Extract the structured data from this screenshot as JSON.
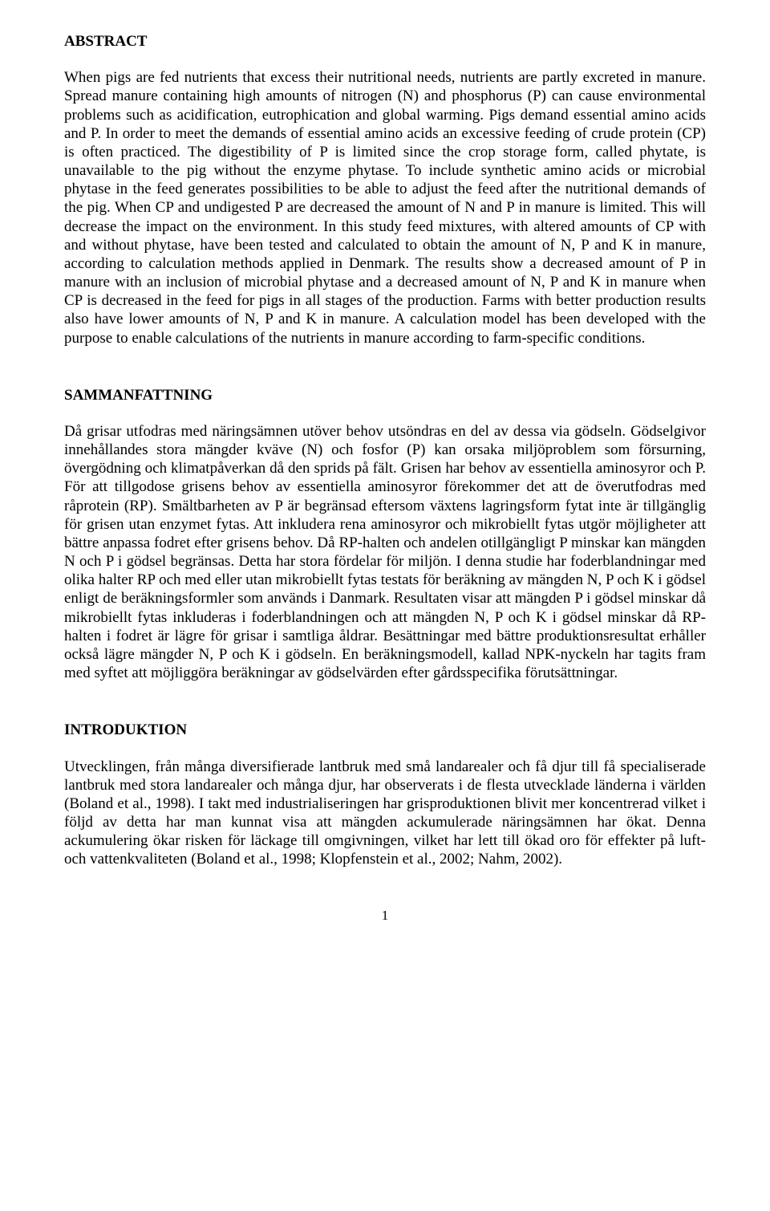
{
  "sections": {
    "abstract": {
      "heading": "ABSTRACT",
      "body": "When pigs are fed nutrients that excess their nutritional needs, nutrients are partly excreted in manure. Spread manure containing high amounts of nitrogen (N) and phosphorus (P) can cause environmental problems such as acidification, eutrophication and global warming. Pigs demand essential amino acids and P. In order to meet the demands of essential amino acids an excessive feeding of crude protein (CP) is often practiced. The digestibility of P is limited since the crop storage form, called phytate, is unavailable to the pig without the enzyme phytase. To include synthetic amino acids or microbial phytase in the feed generates possibilities to be able to adjust the feed after the nutritional demands of the pig. When CP and undigested P are decreased the amount of N and P in manure is limited. This will decrease the impact on the environment. In this study feed mixtures, with altered amounts of CP with and without phytase, have been tested and calculated to obtain the amount of N, P and K in manure, according to calculation methods applied in Denmark. The results show a decreased amount of P in manure with an inclusion of microbial phytase and a decreased amount of N, P and K in manure when CP is decreased in the feed for pigs in all stages of the production. Farms with better production results also have lower amounts of N, P and K in manure. A calculation model has been developed with the purpose to enable calculations of the nutrients in manure according to farm-specific conditions."
    },
    "sammanfattning": {
      "heading": "SAMMANFATTNING",
      "body": "Då grisar utfodras med näringsämnen utöver behov utsöndras en del av dessa via gödseln. Gödselgivor innehållandes stora mängder kväve (N) och fosfor (P) kan orsaka miljöproblem som försurning, övergödning och klimatpåverkan då den sprids på fält. Grisen har behov av essentiella aminosyror och P. För att tillgodose grisens behov av essentiella aminosyror förekommer det att de överutfodras med råprotein (RP). Smältbarheten av P är begränsad eftersom växtens lagringsform fytat inte är tillgänglig för grisen utan enzymet fytas. Att inkludera rena aminosyror och mikrobiellt fytas utgör möjligheter att bättre anpassa fodret efter grisens behov. Då RP-halten och andelen otillgängligt P minskar kan mängden N och P i gödsel begränsas. Detta har stora fördelar för miljön. I denna studie har foderblandningar med olika halter RP och med eller utan mikrobiellt fytas testats för beräkning av mängden N, P och K i gödsel enligt de beräkningsformler som används i Danmark. Resultaten visar att mängden P i gödsel minskar då mikrobiellt fytas inkluderas i foderblandningen och att mängden N, P och K i gödsel minskar då RP-halten i fodret är lägre för grisar i samtliga åldrar. Besättningar med bättre produktionsresultat erhåller också lägre mängder N, P och K i gödseln. En beräkningsmodell, kallad NPK-nyckeln har tagits fram med syftet att möjliggöra beräkningar av gödselvärden efter gårdsspecifika förutsättningar."
    },
    "introduktion": {
      "heading": "INTRODUKTION",
      "body": "Utvecklingen, från många diversifierade lantbruk med små landarealer och få djur till få specialiserade lantbruk med stora landarealer och många djur, har observerats i de flesta utvecklade länderna i världen (Boland et al., 1998). I takt med industrialiseringen har grisproduktionen blivit mer koncentrerad vilket i följd av detta har man kunnat visa att mängden ackumulerade näringsämnen har ökat. Denna ackumulering ökar risken för läckage till omgivningen, vilket har lett till ökad oro för effekter på luft- och vattenkvaliteten (Boland et al., 1998; Klopfenstein et al., 2002; Nahm, 2002)."
    }
  },
  "page_number": "1"
}
